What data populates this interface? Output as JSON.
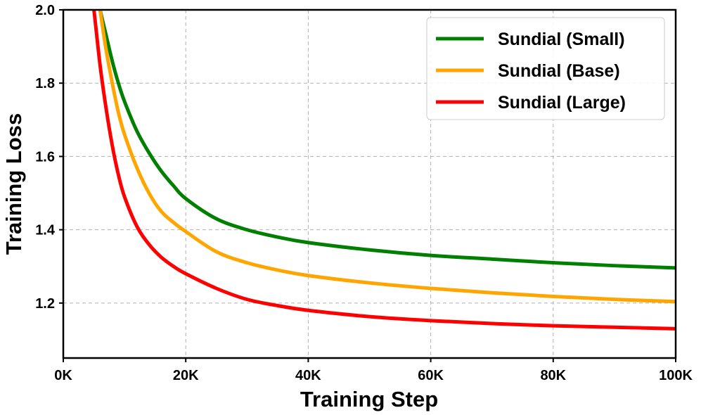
{
  "chart_data": {
    "type": "line",
    "title": "",
    "xlabel": "Training Step",
    "ylabel": "Training Loss",
    "xlim": [
      0,
      100000
    ],
    "ylim": [
      1.05,
      2.0
    ],
    "x_ticks": [
      0,
      20000,
      40000,
      60000,
      80000,
      100000
    ],
    "x_tick_labels": [
      "0K",
      "20K",
      "40K",
      "60K",
      "80K",
      "100K"
    ],
    "y_ticks": [
      1.2,
      1.4,
      1.6,
      1.8,
      2.0
    ],
    "y_tick_labels": [
      "1.2",
      "1.4",
      "1.6",
      "1.8",
      "2.0"
    ],
    "grid": true,
    "legend_position": "top-right",
    "series": [
      {
        "name": "Sundial (Small)",
        "color": "#008000",
        "x": [
          6000,
          7000,
          8000,
          9000,
          10000,
          12000,
          14000,
          16000,
          18000,
          20000,
          25000,
          30000,
          35000,
          40000,
          50000,
          60000,
          70000,
          80000,
          90000,
          100000
        ],
        "y": [
          2.0,
          1.93,
          1.86,
          1.8,
          1.75,
          1.67,
          1.61,
          1.56,
          1.52,
          1.485,
          1.43,
          1.4,
          1.38,
          1.365,
          1.345,
          1.33,
          1.32,
          1.31,
          1.302,
          1.296
        ]
      },
      {
        "name": "Sundial (Base)",
        "color": "#FFA500",
        "x": [
          6000,
          7000,
          8000,
          9000,
          10000,
          12000,
          14000,
          16000,
          18000,
          20000,
          25000,
          30000,
          35000,
          40000,
          50000,
          60000,
          70000,
          80000,
          90000,
          100000
        ],
        "y": [
          2.0,
          1.89,
          1.8,
          1.72,
          1.66,
          1.57,
          1.5,
          1.45,
          1.42,
          1.395,
          1.34,
          1.31,
          1.29,
          1.275,
          1.255,
          1.24,
          1.228,
          1.218,
          1.21,
          1.204
        ]
      },
      {
        "name": "Sundial (Large)",
        "color": "#FF0000",
        "x": [
          5000,
          6000,
          7000,
          8000,
          9000,
          10000,
          12000,
          14000,
          16000,
          18000,
          20000,
          25000,
          30000,
          35000,
          40000,
          50000,
          60000,
          70000,
          80000,
          90000,
          100000
        ],
        "y": [
          2.0,
          1.85,
          1.73,
          1.63,
          1.55,
          1.49,
          1.41,
          1.36,
          1.325,
          1.3,
          1.28,
          1.24,
          1.21,
          1.193,
          1.18,
          1.163,
          1.152,
          1.144,
          1.138,
          1.134,
          1.13
        ]
      }
    ]
  }
}
